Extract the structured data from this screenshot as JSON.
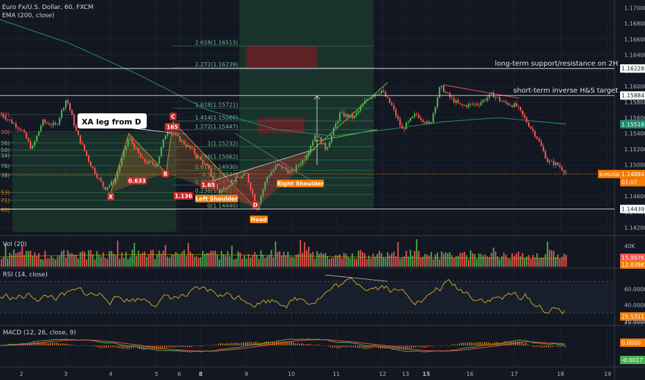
{
  "header": {
    "symbol_line": "Euro Fx/U.S. Dollar, 60, FXCM",
    "ema_label": "EMA (200, close)"
  },
  "chart_data": [
    {
      "type": "candlestick",
      "panel": "price",
      "yticks": [
        1.142,
        1.144,
        1.146,
        1.148,
        1.15,
        1.152,
        1.154,
        1.156,
        1.158,
        1.16,
        1.162,
        1.164,
        1.166,
        1.168,
        1.17
      ],
      "ylim": [
        1.141,
        1.171
      ],
      "xticks": [
        "2",
        "3",
        "4",
        "5",
        "6",
        "8",
        "9",
        "10",
        "11",
        "12",
        "13",
        "15",
        "16",
        "17",
        "18",
        "19"
      ],
      "price_tags": [
        {
          "text": "1.16228",
          "y": 1.16228
        },
        {
          "text": "1.15884",
          "y": 1.15884
        },
        {
          "text": "1.15518",
          "y": 1.15518,
          "color": "#1e8c6e"
        },
        {
          "text": "EURUSD",
          "y": 1.14884,
          "color": "#f57c00"
        },
        {
          "text": "1.14884",
          "y": 1.14884,
          "color": "#f57c00"
        },
        {
          "text": "01:07",
          "y": 1.1478,
          "color": "#f57c00"
        },
        {
          "text": "1.14439",
          "y": 1.14439
        }
      ],
      "hlines": [
        {
          "y": 1.16228,
          "text": "long-term support/resistance on 2H"
        },
        {
          "y": 1.15884,
          "text": "short-term inverse H&S target"
        },
        {
          "y": 1.14439,
          "text": ""
        }
      ],
      "fib_labels": [
        {
          "text": "2.618(1.16513)",
          "y": 1.16513
        },
        {
          "text": "2.272(1.16239)",
          "y": 1.16239
        },
        {
          "text": "1.618(1.15721)",
          "y": 1.15721
        },
        {
          "text": "1.414(1.15560)",
          "y": 1.1556
        },
        {
          "text": "1.272(1.15447)",
          "y": 1.15447
        },
        {
          "text": "1(1.15232)",
          "y": 1.15232
        },
        {
          "text": "0.786(1.15062)",
          "y": 1.15062
        },
        {
          "text": "0.618(1.14930)",
          "y": 1.1493
        },
        {
          "text": "0.5(1.14836)",
          "y": 1.14836
        },
        {
          "text": "0.382(1.14742)",
          "y": 1.14742
        },
        {
          "text": "0.236(1.14627)",
          "y": 1.14627
        },
        {
          "text": "0(1.14440)",
          "y": 1.1444
        }
      ],
      "left_cut_labels": [
        "82)",
        "30)",
        "36)",
        "50)",
        "34)",
        "76)",
        "38)",
        "53)",
        "71)",
        "40)"
      ],
      "annotations": [
        {
          "text": "XA leg from D",
          "kind": "callout"
        },
        {
          "text": "C",
          "kind": "point"
        },
        {
          "text": "B",
          "kind": "point"
        },
        {
          "text": "X",
          "kind": "point"
        },
        {
          "text": "D",
          "kind": "point"
        },
        {
          "text": "0.633",
          "kind": "ratio"
        },
        {
          "text": "1.136",
          "kind": "ratio"
        },
        {
          "text": "1.65",
          "kind": "ratio"
        },
        {
          "text": "165",
          "kind": "ratio"
        },
        {
          "text": "Left Shoulder",
          "kind": "pattern"
        },
        {
          "text": "Head",
          "kind": "pattern"
        },
        {
          "text": "Right Shoulder",
          "kind": "pattern"
        }
      ],
      "ema_color": "#1e8c6e",
      "up_color": "#4caf50",
      "down_color": "#ef5350"
    },
    {
      "type": "bar",
      "panel": "volume",
      "title": "Vol (20)",
      "yticks": [
        "40K"
      ],
      "tags": [
        {
          "text": "15.997K",
          "color": "#ef5350"
        },
        {
          "text": "12.039K",
          "color": "#f57c00"
        }
      ]
    },
    {
      "type": "line",
      "panel": "rsi",
      "title": "RSI (14, close)",
      "yticks": [
        60.0,
        40.0,
        20.0
      ],
      "yticklabels": [
        "60.0000",
        "40.0000",
        "20.0000"
      ],
      "ylim": [
        15,
        85
      ],
      "tags": [
        {
          "text": "25.5311",
          "color": "#f57c00"
        }
      ],
      "line_color": "#e6b422"
    },
    {
      "type": "bar",
      "panel": "macd",
      "title": "MACD (12, 26, close, 9)",
      "yticklabels": [
        "0.0000",
        "-0.0017"
      ],
      "tags": [
        {
          "text": "0.0000",
          "color": "#f57c00"
        },
        {
          "text": "-0.0017",
          "color": "#4caf50"
        }
      ]
    }
  ]
}
